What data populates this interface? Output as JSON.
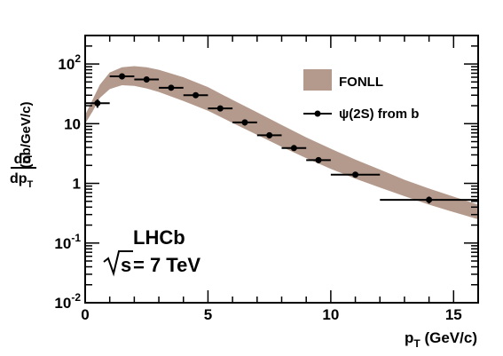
{
  "chart_data": {
    "type": "line",
    "x_axis": {
      "label_main": "p",
      "label_sub": "T",
      "label_unit": " (GeV/c)",
      "range": [
        0,
        16
      ],
      "ticks": [
        0,
        5,
        10,
        15
      ],
      "tick_labels": [
        "0",
        "5",
        "10",
        "15"
      ]
    },
    "y_axis": {
      "scale": "log",
      "range": [
        0.01,
        300
      ],
      "ticks": [
        0.01,
        0.1,
        1,
        10,
        100
      ],
      "tick_labels": [
        {
          "base": "10",
          "exp": "-2"
        },
        {
          "base": "10",
          "exp": "-1"
        },
        {
          "base": "1",
          "exp": ""
        },
        {
          "base": "10",
          "exp": ""
        },
        {
          "base": "10",
          "exp": "2"
        }
      ],
      "label_num": "dσ",
      "label_den": "dp",
      "label_den_sub": "T",
      "label_unit": "(nb/GeV/c)"
    },
    "series": [
      {
        "name": "FONLL",
        "kind": "band",
        "color": "#b49a8c",
        "x": [
          0.0,
          0.3,
          0.6,
          1.0,
          1.5,
          2.0,
          2.5,
          3.0,
          4.0,
          5.0,
          6.0,
          7.0,
          8.0,
          9.0,
          10.0,
          11.0,
          12.0,
          13.0,
          14.0,
          15.0,
          16.0
        ],
        "lower": [
          10,
          16,
          27,
          38,
          44,
          43,
          39,
          34,
          24,
          16.5,
          10.3,
          6.5,
          4.1,
          2.65,
          1.75,
          1.2,
          0.85,
          0.61,
          0.44,
          0.33,
          0.25
        ],
        "upper": [
          14,
          25,
          45,
          72,
          88,
          92,
          88,
          80,
          60,
          41,
          25,
          15.5,
          9.5,
          5.9,
          3.8,
          2.5,
          1.7,
          1.15,
          0.82,
          0.6,
          0.44
        ]
      },
      {
        "name": "ψ(2S) from b",
        "kind": "points",
        "color": "#000000",
        "x": [
          0.5,
          1.5,
          2.5,
          3.5,
          4.5,
          5.5,
          6.5,
          7.5,
          8.5,
          9.5,
          11.0,
          14.0
        ],
        "x_err": [
          0.5,
          0.5,
          0.5,
          0.5,
          0.5,
          0.5,
          0.5,
          0.5,
          0.5,
          0.5,
          1.0,
          2.0
        ],
        "y": [
          22,
          62,
          55,
          40,
          30,
          18,
          10.5,
          6.4,
          3.9,
          2.45,
          1.4,
          0.53
        ],
        "y_err_lo": [
          3.5,
          7,
          6,
          4,
          3,
          2,
          1.2,
          0.7,
          0.4,
          0.28,
          0.15,
          0.07
        ],
        "y_err_hi": [
          3.5,
          7,
          6,
          4,
          3,
          2,
          1.2,
          0.7,
          0.4,
          0.28,
          0.15,
          0.07
        ]
      }
    ],
    "legend": {
      "placement": "top-right",
      "entries": [
        "FONLL",
        "ψ(2S) from b"
      ]
    },
    "annotations": {
      "experiment": "LHCb",
      "energy_sqrt": "s",
      "energy_rest": " = 7 TeV"
    }
  }
}
